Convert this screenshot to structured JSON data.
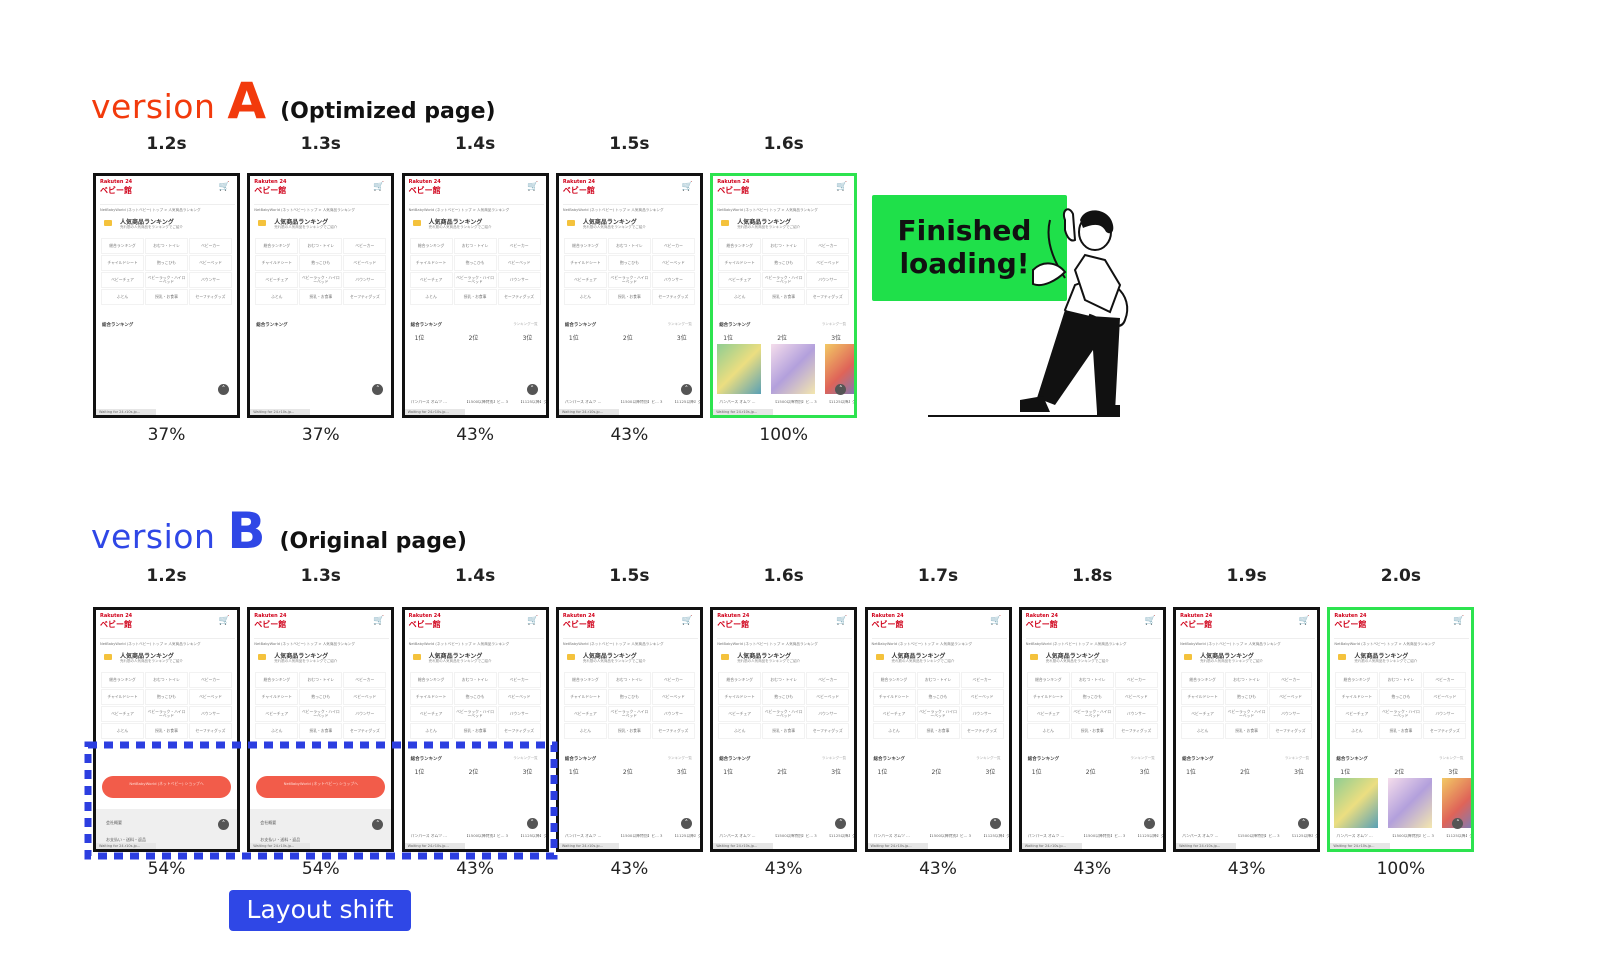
{
  "version_a": {
    "label": "version",
    "letter": "A",
    "subtitle": "(Optimized page)",
    "color": "#f23a0c",
    "frames": [
      {
        "time": "1.2s",
        "progress": "37%"
      },
      {
        "time": "1.3s",
        "progress": "37%"
      },
      {
        "time": "1.4s",
        "progress": "43%"
      },
      {
        "time": "1.5s",
        "progress": "43%"
      },
      {
        "time": "1.6s",
        "progress": "100%"
      }
    ],
    "callout": "Finished loading!"
  },
  "version_b": {
    "label": "version",
    "letter": "B",
    "subtitle": "(Original page)",
    "color": "#2f47e6",
    "frames": [
      {
        "time": "1.2s",
        "progress": "54%"
      },
      {
        "time": "1.3s",
        "progress": "54%"
      },
      {
        "time": "1.4s",
        "progress": "43%"
      },
      {
        "time": "1.5s",
        "progress": "43%"
      },
      {
        "time": "1.6s",
        "progress": "43%"
      },
      {
        "time": "1.7s",
        "progress": "43%"
      },
      {
        "time": "1.8s",
        "progress": "43%"
      },
      {
        "time": "1.9s",
        "progress": "43%"
      },
      {
        "time": "2.0s",
        "progress": "100%"
      }
    ],
    "annotation": "Layout shift"
  },
  "thumbnail": {
    "logo_top": "Rakuten 24",
    "logo_main": "ベビー館",
    "breadcrumb": "NetBabyWorld (ネットベビー) トップ > 人気商品ランキング",
    "title": "人気商品ランキング",
    "subtitle": "売れ筋の人気商品をランキングでご紹介",
    "categories": [
      "総合ランキング",
      "おむつ・トイレ",
      "ベビーカー",
      "チャイルドシート",
      "抱っこひも",
      "ベビーベッド",
      "ベビーチェア",
      "ベビーラック・ハイローベッド",
      "バウンサー",
      "ふとん",
      "授乳・お食事",
      "セーフティグッズ"
    ],
    "ranking_heading": "総合ランキング",
    "ranking_more": "ランキング一覧",
    "positions": [
      "1位",
      "2位",
      "3位"
    ],
    "captions": [
      "パンパース オムツ ...",
      "【1500以降特別】ビ... 3【メリーズ おむつ...",
      "【1125以降】グーン..."
    ],
    "status": "Waiting for 24.r10s.jp...",
    "shop_button": "NetBabyWorld (ネットベビー) ショップへ",
    "footer_company": "会社概要",
    "footer_links": "お支払い・送料・返品",
    "colors": {
      "brand": "#d0021b",
      "button": "#f25c4a",
      "done_border": "#2de34f"
    }
  },
  "icons": [
    "cart-icon",
    "crown-icon",
    "scroll-top-icon"
  ],
  "colors": {
    "callout": "#1fe04a",
    "annotation": "#2f47e6"
  }
}
